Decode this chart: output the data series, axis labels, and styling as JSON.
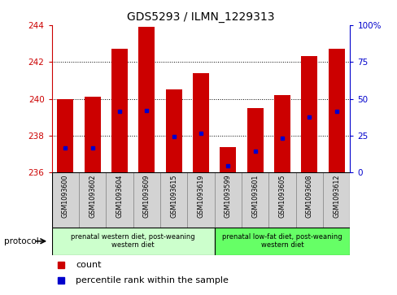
{
  "title": "GDS5293 / ILMN_1229313",
  "samples": [
    "GSM1093600",
    "GSM1093602",
    "GSM1093604",
    "GSM1093609",
    "GSM1093615",
    "GSM1093619",
    "GSM1093599",
    "GSM1093601",
    "GSM1093605",
    "GSM1093608",
    "GSM1093612"
  ],
  "bar_values": [
    240.0,
    240.1,
    242.7,
    243.9,
    240.5,
    241.4,
    237.4,
    239.5,
    240.2,
    242.3,
    242.7
  ],
  "percentile_values": [
    237.35,
    237.35,
    239.3,
    239.35,
    237.95,
    238.15,
    236.35,
    237.15,
    237.85,
    239.0,
    239.3
  ],
  "ylim_left": [
    236,
    244
  ],
  "ylim_right": [
    0,
    100
  ],
  "yticks_left": [
    236,
    238,
    240,
    242,
    244
  ],
  "yticks_right": [
    0,
    25,
    50,
    75,
    100
  ],
  "bar_color": "#cc0000",
  "percentile_color": "#0000cc",
  "bar_bottom": 236,
  "group1_count": 6,
  "group2_count": 5,
  "group1_label": "prenatal western diet, post-weaning\nwestern diet",
  "group2_label": "prenatal low-fat diet, post-weaning\nwestern diet",
  "protocol_label": "protocol",
  "legend_count_label": "count",
  "legend_percentile_label": "percentile rank within the sample",
  "grid_color": "#000000",
  "axis_color_left": "#cc0000",
  "axis_color_right": "#0000cc",
  "background_color": "#ffffff",
  "plot_bg_color": "#ffffff",
  "bar_width": 0.6,
  "group1_bg": "#ccffcc",
  "group2_bg": "#66ff66",
  "sample_bg": "#d3d3d3"
}
